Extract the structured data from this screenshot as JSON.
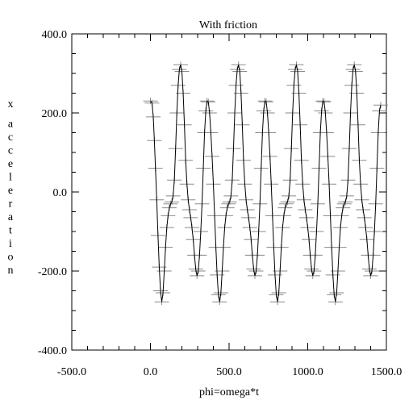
{
  "chart_data": {
    "type": "line",
    "title": "With friction",
    "xlabel": "phi=omega*t",
    "ylabel": "x acceleration",
    "xlim": [
      -500,
      1500
    ],
    "ylim": [
      -400,
      400
    ],
    "x_major_ticks": [
      -500,
      0,
      500,
      1000,
      1500
    ],
    "x_tick_labels": [
      "-500.0",
      "0.0",
      "500.0",
      "1000.0",
      "1500.0"
    ],
    "y_major_ticks": [
      -400,
      -200,
      0,
      200,
      400
    ],
    "y_tick_labels": [
      "-400.0",
      "-200.0",
      "0.0",
      "200.0",
      "400.0"
    ],
    "grid": false,
    "marker": "plus",
    "series": [
      {
        "points": [
          [
            0,
            230
          ],
          [
            10,
            225
          ],
          [
            18,
            190
          ],
          [
            25,
            130
          ],
          [
            32,
            60
          ],
          [
            40,
            -20
          ],
          [
            48,
            -110
          ],
          [
            56,
            -190
          ],
          [
            64,
            -250
          ],
          [
            72,
            -278
          ],
          [
            80,
            -255
          ],
          [
            88,
            -200
          ],
          [
            96,
            -140
          ],
          [
            104,
            -90
          ],
          [
            112,
            -60
          ],
          [
            120,
            -40
          ],
          [
            128,
            -30
          ],
          [
            136,
            -25
          ],
          [
            144,
            -10
          ],
          [
            152,
            30
          ],
          [
            160,
            110
          ],
          [
            168,
            200
          ],
          [
            176,
            270
          ],
          [
            184,
            310
          ],
          [
            192,
            322
          ],
          [
            200,
            305
          ],
          [
            208,
            250
          ],
          [
            216,
            170
          ],
          [
            224,
            80
          ],
          [
            232,
            20
          ],
          [
            240,
            -20
          ],
          [
            248,
            -45
          ],
          [
            256,
            -65
          ],
          [
            264,
            -90
          ],
          [
            272,
            -120
          ],
          [
            280,
            -160
          ],
          [
            288,
            -195
          ],
          [
            296,
            -212
          ],
          [
            304,
            -200
          ],
          [
            312,
            -160
          ],
          [
            320,
            -100
          ],
          [
            328,
            -30
          ],
          [
            336,
            60
          ],
          [
            344,
            150
          ],
          [
            352,
            205
          ],
          [
            360,
            230
          ],
          [
            368,
            228
          ],
          [
            376,
            200
          ],
          [
            384,
            150
          ],
          [
            392,
            90
          ],
          [
            400,
            20
          ],
          [
            408,
            -60
          ],
          [
            416,
            -140
          ],
          [
            424,
            -210
          ],
          [
            432,
            -260
          ],
          [
            440,
            -278
          ],
          [
            448,
            -255
          ],
          [
            456,
            -200
          ],
          [
            464,
            -140
          ],
          [
            472,
            -90
          ],
          [
            480,
            -60
          ],
          [
            488,
            -40
          ],
          [
            496,
            -30
          ],
          [
            504,
            -25
          ],
          [
            512,
            -10
          ],
          [
            520,
            30
          ],
          [
            528,
            110
          ],
          [
            536,
            200
          ],
          [
            544,
            270
          ],
          [
            552,
            310
          ],
          [
            560,
            322
          ],
          [
            568,
            305
          ],
          [
            576,
            250
          ],
          [
            584,
            170
          ],
          [
            592,
            80
          ],
          [
            600,
            20
          ],
          [
            608,
            -20
          ],
          [
            616,
            -45
          ],
          [
            624,
            -65
          ],
          [
            632,
            -90
          ],
          [
            640,
            -120
          ],
          [
            648,
            -160
          ],
          [
            656,
            -195
          ],
          [
            664,
            -212
          ],
          [
            672,
            -200
          ],
          [
            680,
            -160
          ],
          [
            688,
            -100
          ],
          [
            696,
            -30
          ],
          [
            704,
            60
          ],
          [
            712,
            150
          ],
          [
            720,
            205
          ],
          [
            728,
            230
          ],
          [
            736,
            228
          ],
          [
            744,
            200
          ],
          [
            752,
            150
          ],
          [
            760,
            90
          ],
          [
            768,
            20
          ],
          [
            776,
            -60
          ],
          [
            784,
            -140
          ],
          [
            792,
            -210
          ],
          [
            800,
            -260
          ],
          [
            808,
            -278
          ],
          [
            816,
            -255
          ],
          [
            824,
            -200
          ],
          [
            832,
            -140
          ],
          [
            840,
            -90
          ],
          [
            848,
            -60
          ],
          [
            856,
            -40
          ],
          [
            864,
            -30
          ],
          [
            872,
            -25
          ],
          [
            880,
            -10
          ],
          [
            888,
            30
          ],
          [
            896,
            110
          ],
          [
            904,
            200
          ],
          [
            912,
            270
          ],
          [
            920,
            310
          ],
          [
            928,
            322
          ],
          [
            936,
            305
          ],
          [
            944,
            250
          ],
          [
            952,
            170
          ],
          [
            960,
            80
          ],
          [
            968,
            20
          ],
          [
            976,
            -20
          ],
          [
            984,
            -45
          ],
          [
            992,
            -65
          ],
          [
            1000,
            -90
          ],
          [
            1008,
            -120
          ],
          [
            1016,
            -160
          ],
          [
            1024,
            -195
          ],
          [
            1032,
            -212
          ],
          [
            1040,
            -200
          ],
          [
            1048,
            -160
          ],
          [
            1056,
            -100
          ],
          [
            1064,
            -30
          ],
          [
            1072,
            60
          ],
          [
            1080,
            150
          ],
          [
            1088,
            205
          ],
          [
            1096,
            230
          ],
          [
            1104,
            228
          ],
          [
            1112,
            200
          ],
          [
            1120,
            150
          ],
          [
            1128,
            90
          ],
          [
            1136,
            20
          ],
          [
            1144,
            -60
          ],
          [
            1152,
            -140
          ],
          [
            1160,
            -210
          ],
          [
            1168,
            -260
          ],
          [
            1176,
            -278
          ],
          [
            1184,
            -255
          ],
          [
            1192,
            -200
          ],
          [
            1200,
            -140
          ],
          [
            1208,
            -90
          ],
          [
            1216,
            -60
          ],
          [
            1224,
            -40
          ],
          [
            1232,
            -30
          ],
          [
            1240,
            -25
          ],
          [
            1248,
            -10
          ],
          [
            1256,
            30
          ],
          [
            1264,
            110
          ],
          [
            1272,
            200
          ],
          [
            1280,
            270
          ],
          [
            1288,
            310
          ],
          [
            1296,
            322
          ],
          [
            1304,
            305
          ],
          [
            1312,
            250
          ],
          [
            1320,
            170
          ],
          [
            1328,
            80
          ],
          [
            1336,
            20
          ],
          [
            1344,
            -20
          ],
          [
            1352,
            -45
          ],
          [
            1360,
            -65
          ],
          [
            1368,
            -90
          ],
          [
            1376,
            -120
          ],
          [
            1384,
            -160
          ],
          [
            1392,
            -195
          ],
          [
            1400,
            -212
          ],
          [
            1408,
            -200
          ],
          [
            1416,
            -160
          ],
          [
            1424,
            -100
          ],
          [
            1432,
            -30
          ],
          [
            1440,
            60
          ],
          [
            1448,
            150
          ],
          [
            1456,
            205
          ],
          [
            1464,
            220
          ]
        ]
      }
    ]
  }
}
